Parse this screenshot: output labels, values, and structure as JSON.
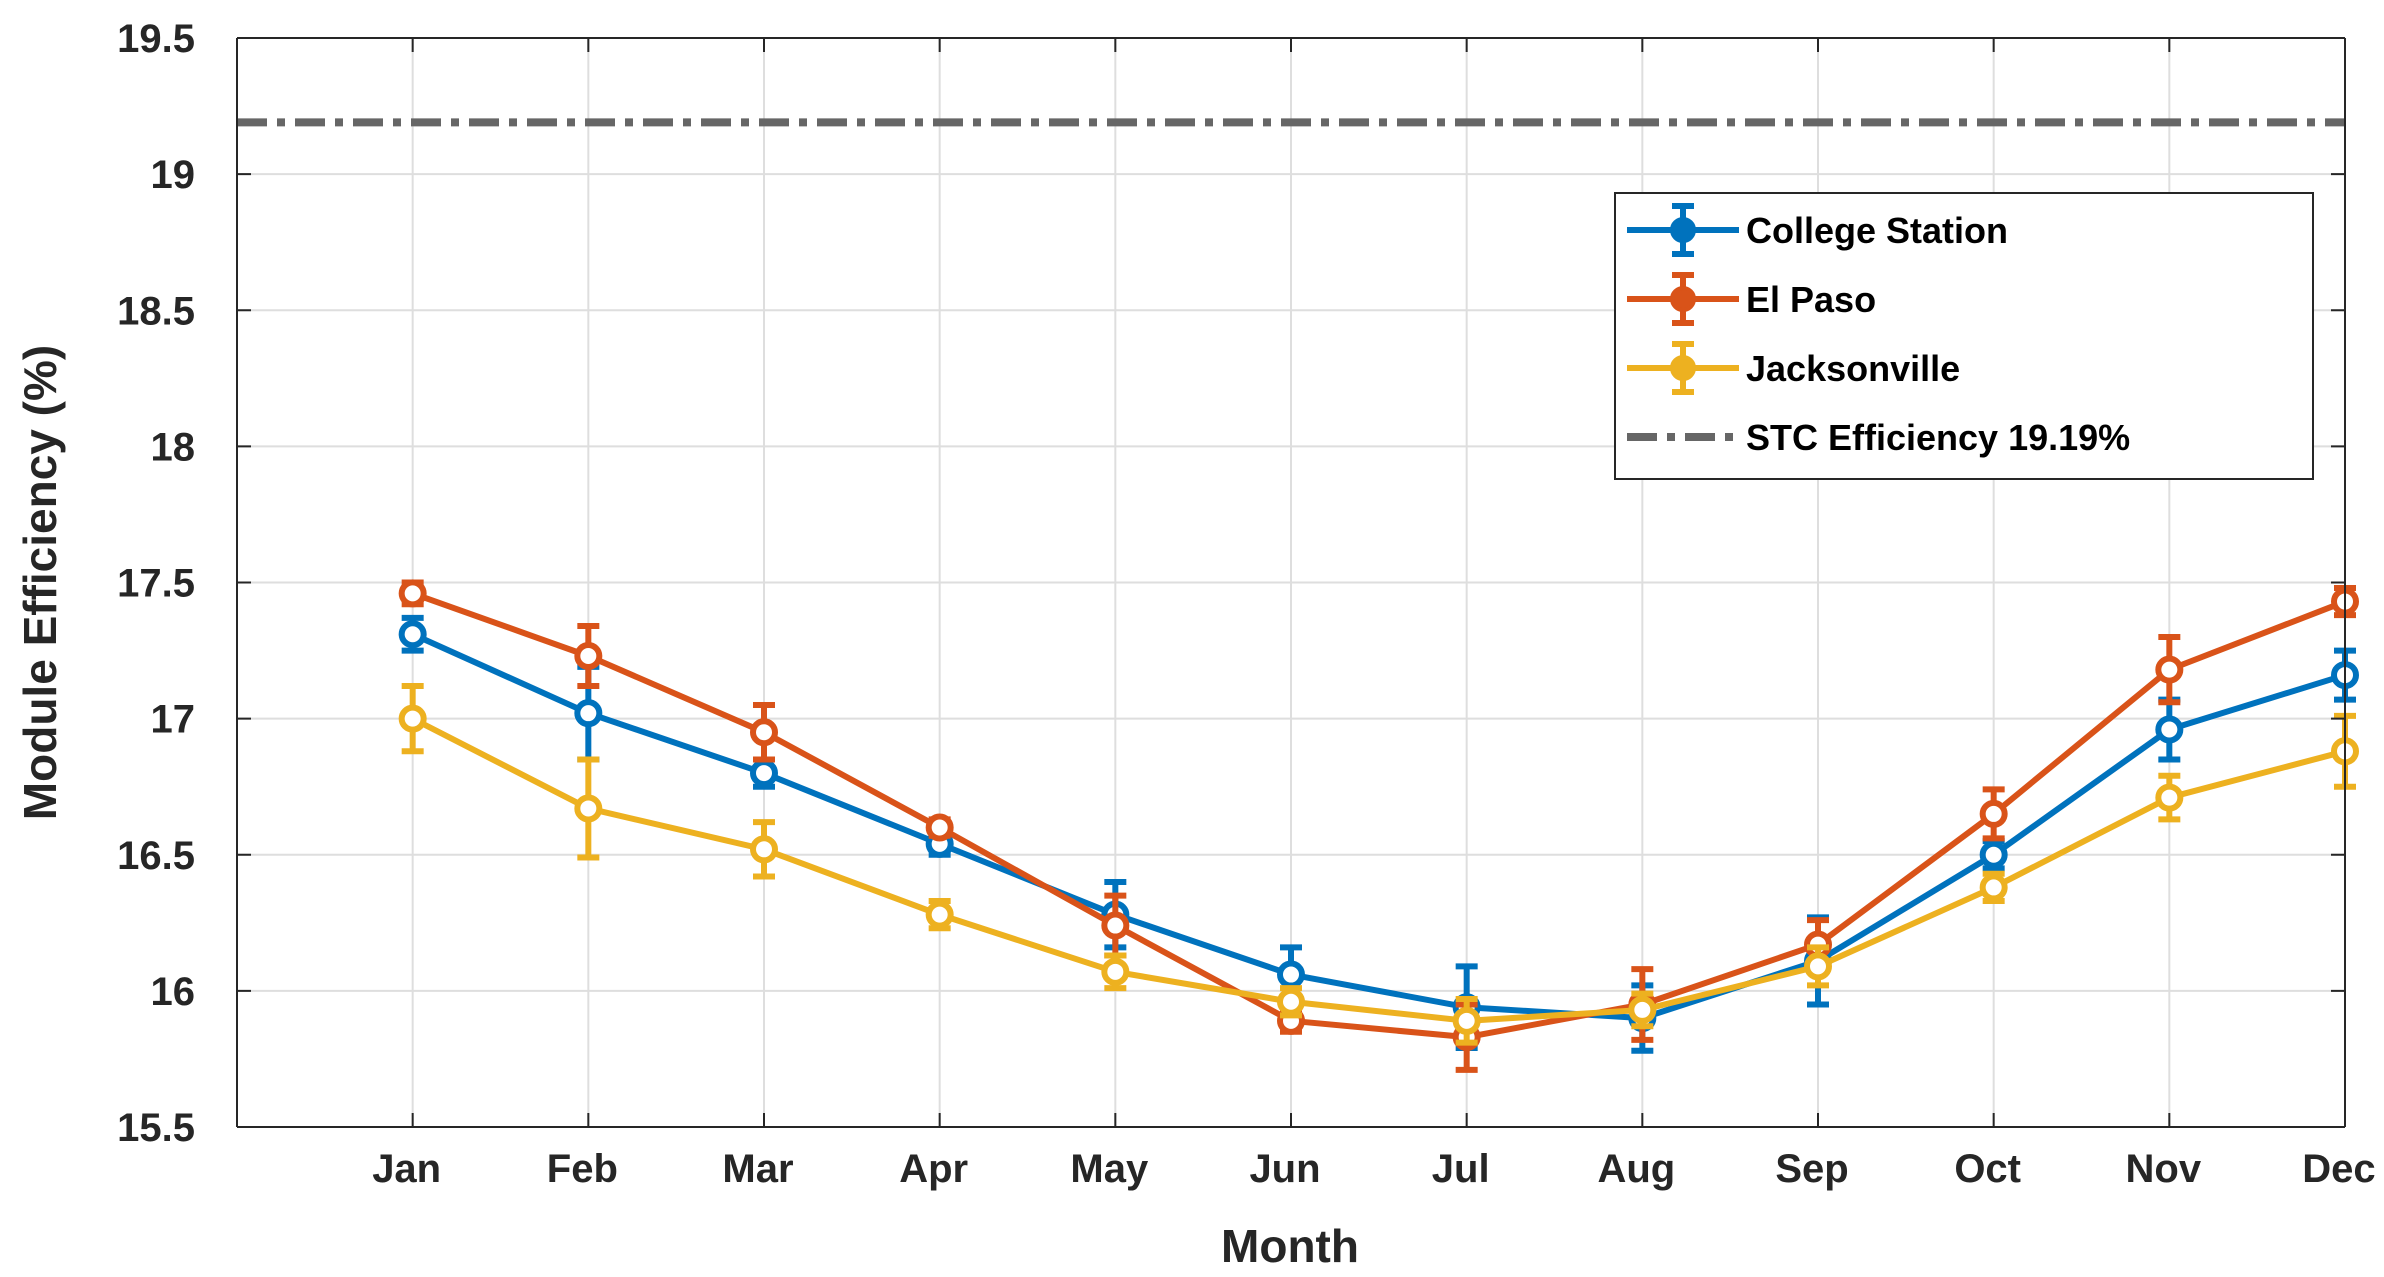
{
  "chart_data": {
    "type": "line",
    "title": "",
    "xlabel": "Month",
    "ylabel": "Module Efficiency (%)",
    "categories": [
      "Jan",
      "Feb",
      "Mar",
      "Apr",
      "May",
      "Jun",
      "Jul",
      "Aug",
      "Sep",
      "Oct",
      "Nov",
      "Dec"
    ],
    "xlim": [
      0,
      12
    ],
    "ylim": [
      15.5,
      19.5
    ],
    "yticks": [
      15.5,
      16,
      16.5,
      17,
      17.5,
      18,
      18.5,
      19,
      19.5
    ],
    "ytick_labels": [
      "15.5",
      "16",
      "16.5",
      "17",
      "17.5",
      "18",
      "18.5",
      "19",
      "19.5"
    ],
    "grid": true,
    "legend_position": "top-right",
    "series": [
      {
        "name": "College Station",
        "color": "#0072BD",
        "values": [
          17.31,
          17.02,
          16.8,
          16.54,
          16.28,
          16.06,
          15.94,
          15.9,
          16.11,
          16.5,
          16.96,
          17.16
        ],
        "errors": [
          0.06,
          0.17,
          0.05,
          0.04,
          0.12,
          0.1,
          0.15,
          0.12,
          0.16,
          0.05,
          0.11,
          0.09
        ]
      },
      {
        "name": "El Paso",
        "color": "#D95319",
        "values": [
          17.46,
          17.23,
          16.95,
          16.6,
          16.24,
          15.89,
          15.83,
          15.95,
          16.17,
          16.65,
          17.18,
          17.43
        ],
        "errors": [
          0.04,
          0.11,
          0.1,
          0.03,
          0.11,
          0.04,
          0.12,
          0.13,
          0.09,
          0.09,
          0.12,
          0.05
        ]
      },
      {
        "name": "Jacksonville",
        "color": "#EDB120",
        "values": [
          17.0,
          16.67,
          16.52,
          16.28,
          16.07,
          15.96,
          15.89,
          15.93,
          16.09,
          16.38,
          16.71,
          16.88
        ],
        "errors": [
          0.12,
          0.18,
          0.1,
          0.05,
          0.06,
          0.05,
          0.08,
          0.06,
          0.07,
          0.05,
          0.08,
          0.13
        ]
      }
    ],
    "reference_lines": [
      {
        "name": "STC Efficiency 19.19%",
        "value": 19.19,
        "color": "#666666",
        "style": "dash-dot"
      }
    ]
  }
}
